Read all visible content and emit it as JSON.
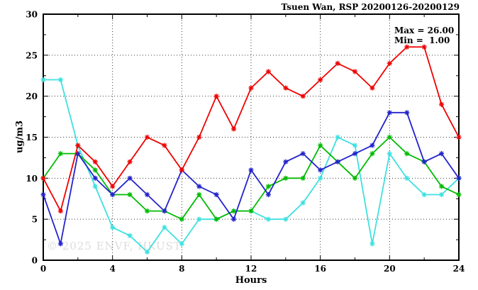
{
  "title": "Tsuen Wan, RSP 20200126-20200129",
  "annotations": {
    "max_label": "Max = 26.00",
    "min_label": "Min =  1.00"
  },
  "watermark": "© 2025 ENVF, HKUST",
  "chart_data": {
    "type": "line",
    "title": "Tsuen Wan, RSP 20200126-20200129",
    "xlabel": "Hours",
    "ylabel": "ug/m3",
    "xlim": [
      0,
      24
    ],
    "ylim": [
      0,
      30
    ],
    "xticks": [
      0,
      4,
      8,
      12,
      16,
      20,
      24
    ],
    "yticks": [
      0,
      5,
      10,
      15,
      20,
      25,
      30
    ],
    "x_minor_step": 2,
    "y_minor_step": 2.5,
    "grid": true,
    "legend": "none",
    "stats": {
      "max": 26.0,
      "min": 1.0
    },
    "x": [
      0,
      1,
      2,
      3,
      4,
      5,
      6,
      7,
      8,
      9,
      10,
      11,
      12,
      13,
      14,
      15,
      16,
      17,
      18,
      19,
      20,
      21,
      22,
      23,
      24
    ],
    "series": [
      {
        "name": "series-cyan",
        "color": "#3fe0e0",
        "values": [
          22,
          22,
          14,
          9,
          4,
          3,
          1,
          4,
          2,
          5,
          5,
          6,
          6,
          5,
          5,
          7,
          10,
          15,
          14,
          2,
          13,
          10,
          8,
          8,
          10
        ]
      },
      {
        "name": "series-green",
        "color": "#00bb00",
        "values": [
          10,
          13,
          13,
          11,
          8,
          8,
          6,
          6,
          5,
          8,
          5,
          6,
          6,
          9,
          10,
          10,
          14,
          12,
          10,
          13,
          15,
          13,
          12,
          9,
          8
        ]
      },
      {
        "name": "series-blue",
        "color": "#2323cc",
        "values": [
          8,
          2,
          13,
          10,
          8,
          10,
          8,
          6,
          11,
          9,
          8,
          5,
          11,
          8,
          12,
          13,
          11,
          12,
          13,
          14,
          18,
          18,
          12,
          13,
          10
        ]
      },
      {
        "name": "series-red",
        "color": "#ee0000",
        "values": [
          10,
          6,
          14,
          12,
          9,
          12,
          15,
          14,
          11,
          15,
          20,
          16,
          21,
          23,
          21,
          20,
          22,
          24,
          23,
          21,
          24,
          26,
          26,
          19,
          15
        ]
      }
    ]
  }
}
